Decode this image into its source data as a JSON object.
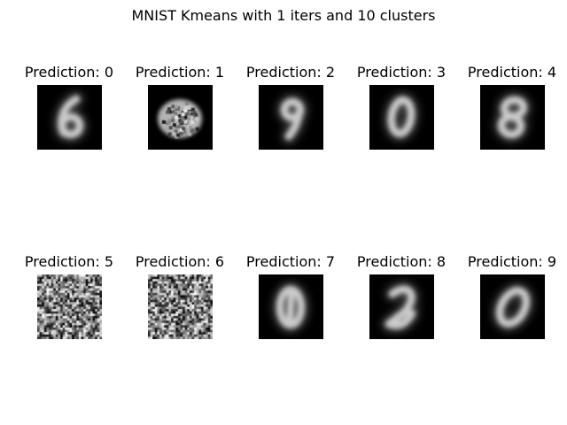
{
  "chart_data": {
    "type": "image-grid",
    "title": "MNIST Kmeans with 1 iters and 10 clusters",
    "rows": 2,
    "cols": 5,
    "colormap": "gray",
    "panels": [
      {
        "label": "Prediction: 0",
        "kind": "digit",
        "shape": "six"
      },
      {
        "label": "Prediction: 1",
        "kind": "digit",
        "shape": "blob"
      },
      {
        "label": "Prediction: 2",
        "kind": "digit",
        "shape": "nine"
      },
      {
        "label": "Prediction: 3",
        "kind": "digit",
        "shape": "zero"
      },
      {
        "label": "Prediction: 4",
        "kind": "digit",
        "shape": "eight"
      },
      {
        "label": "Prediction: 5",
        "kind": "noise",
        "shape": "noise"
      },
      {
        "label": "Prediction: 6",
        "kind": "noise",
        "shape": "noise"
      },
      {
        "label": "Prediction: 7",
        "kind": "digit",
        "shape": "one-zero"
      },
      {
        "label": "Prediction: 8",
        "kind": "digit",
        "shape": "two"
      },
      {
        "label": "Prediction: 9",
        "kind": "digit",
        "shape": "zero-ring"
      }
    ]
  }
}
